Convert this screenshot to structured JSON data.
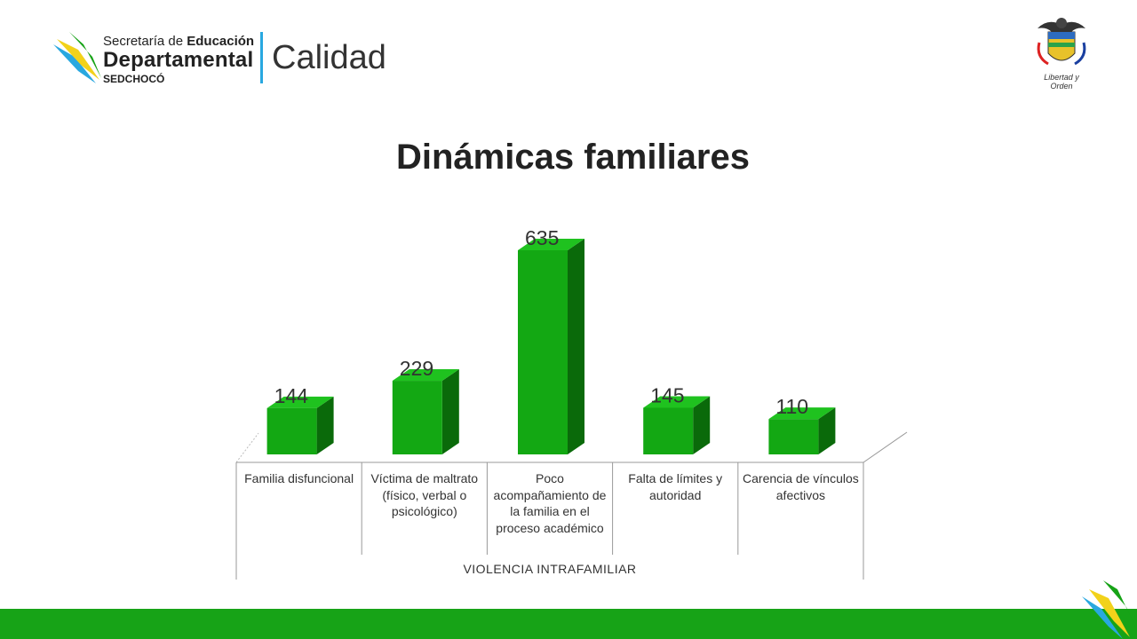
{
  "header": {
    "logo_line1_normal": "Secretaría de",
    "logo_line1_bold": "Educación",
    "logo_line2": "Departamental",
    "logo_line3": "SEDCHOCÓ",
    "calidad": "Calidad",
    "coat_motto": "Libertad y Orden"
  },
  "slide": {
    "title": "Dinámicas familiares"
  },
  "colors": {
    "bar_front": "#13a813",
    "bar_side": "#0a6a0a",
    "bar_top": "#1fc21f",
    "footer": "#17a317",
    "accent_blue": "#29a8e0",
    "accent_yellow": "#f2d21a"
  },
  "chart_data": {
    "type": "bar",
    "title": "",
    "group_label": "VIOLENCIA INTRAFAMILIAR",
    "categories": [
      "Familia disfuncional",
      "Víctima de maltrato (físico, verbal o psicológico)",
      "Poco acompañamiento de la familia en el proceso académico",
      "Falta de límites y autoridad",
      "Carencia de vínculos afectivos"
    ],
    "values": [
      144,
      229,
      635,
      145,
      110
    ],
    "value_labels": [
      "144",
      "229",
      "635",
      "145",
      "110"
    ],
    "ylim": [
      0,
      635
    ],
    "grid": false,
    "legend": "none"
  }
}
